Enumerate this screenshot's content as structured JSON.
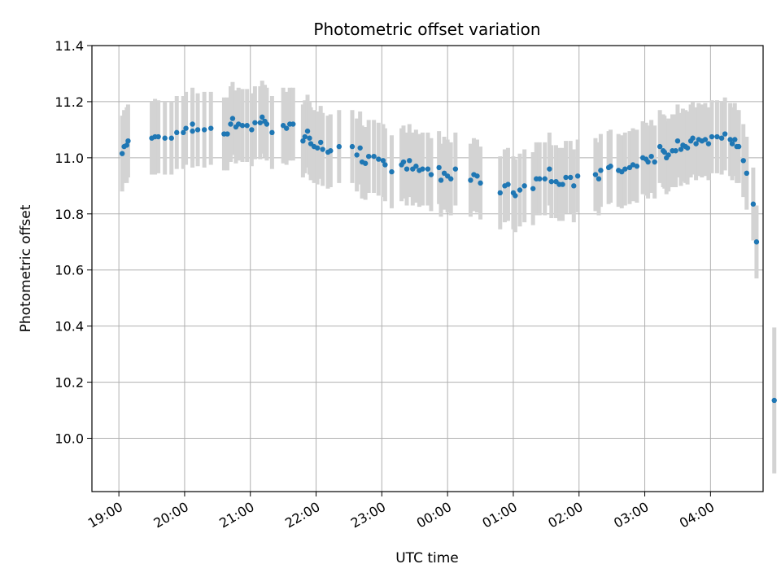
{
  "chart_data": {
    "type": "scatter",
    "title": "Photometric offset variation",
    "xlabel": "UTC time",
    "ylabel": "Photometric offset",
    "grid": true,
    "x_unit": "hours since 19:00 UTC",
    "xlim": [
      -0.41,
      9.8
    ],
    "ylim": [
      9.81,
      11.4
    ],
    "x_ticks": [
      0,
      1,
      2,
      3,
      4,
      5,
      6,
      7,
      8,
      9
    ],
    "x_tick_labels": [
      "19:00",
      "20:00",
      "21:00",
      "22:00",
      "23:00",
      "00:00",
      "01:00",
      "02:00",
      "03:00",
      "04:00"
    ],
    "y_ticks": [
      10.0,
      10.2,
      10.4,
      10.6,
      10.8,
      11.0,
      11.2,
      11.4
    ],
    "y_tick_labels": [
      "10.0",
      "10.2",
      "10.4",
      "10.6",
      "10.8",
      "11.0",
      "11.2",
      "11.4"
    ],
    "series": [
      {
        "name": "Photometric offset",
        "marker_color": "#1f77b4",
        "errorbar_color": "#d3d3d3",
        "points": [
          [
            0.05,
            11.015,
            0.135
          ],
          [
            0.08,
            11.04,
            0.13
          ],
          [
            0.12,
            11.045,
            0.135
          ],
          [
            0.14,
            11.06,
            0.13
          ],
          [
            0.5,
            11.07,
            0.13
          ],
          [
            0.55,
            11.075,
            0.135
          ],
          [
            0.6,
            11.075,
            0.13
          ],
          [
            0.7,
            11.07,
            0.13
          ],
          [
            0.8,
            11.07,
            0.13
          ],
          [
            0.88,
            11.09,
            0.13
          ],
          [
            0.98,
            11.09,
            0.13
          ],
          [
            1.02,
            11.105,
            0.13
          ],
          [
            1.12,
            11.095,
            0.13
          ],
          [
            1.12,
            11.12,
            0.13
          ],
          [
            1.2,
            11.1,
            0.13
          ],
          [
            1.3,
            11.1,
            0.135
          ],
          [
            1.4,
            11.105,
            0.13
          ],
          [
            1.6,
            11.085,
            0.13
          ],
          [
            1.65,
            11.085,
            0.13
          ],
          [
            1.7,
            11.12,
            0.135
          ],
          [
            1.73,
            11.14,
            0.13
          ],
          [
            1.78,
            11.11,
            0.13
          ],
          [
            1.82,
            11.12,
            0.13
          ],
          [
            1.88,
            11.115,
            0.13
          ],
          [
            1.95,
            11.115,
            0.13
          ],
          [
            2.02,
            11.1,
            0.13
          ],
          [
            2.07,
            11.125,
            0.13
          ],
          [
            2.15,
            11.125,
            0.13
          ],
          [
            2.18,
            11.145,
            0.13
          ],
          [
            2.22,
            11.13,
            0.13
          ],
          [
            2.25,
            11.12,
            0.13
          ],
          [
            2.33,
            11.09,
            0.13
          ],
          [
            2.5,
            11.115,
            0.135
          ],
          [
            2.55,
            11.105,
            0.13
          ],
          [
            2.6,
            11.12,
            0.13
          ],
          [
            2.65,
            11.12,
            0.13
          ],
          [
            2.8,
            11.06,
            0.13
          ],
          [
            2.83,
            11.075,
            0.13
          ],
          [
            2.87,
            11.095,
            0.13
          ],
          [
            2.9,
            11.07,
            0.13
          ],
          [
            2.92,
            11.05,
            0.13
          ],
          [
            2.97,
            11.04,
            0.13
          ],
          [
            3.02,
            11.035,
            0.13
          ],
          [
            3.07,
            11.055,
            0.13
          ],
          [
            3.1,
            11.03,
            0.13
          ],
          [
            3.18,
            11.02,
            0.13
          ],
          [
            3.22,
            11.025,
            0.13
          ],
          [
            3.35,
            11.04,
            0.13
          ],
          [
            3.55,
            11.04,
            0.13
          ],
          [
            3.62,
            11.01,
            0.13
          ],
          [
            3.67,
            11.035,
            0.13
          ],
          [
            3.7,
            10.985,
            0.13
          ],
          [
            3.75,
            10.98,
            0.13
          ],
          [
            3.8,
            11.005,
            0.13
          ],
          [
            3.88,
            11.005,
            0.13
          ],
          [
            3.95,
            10.995,
            0.13
          ],
          [
            4.02,
            10.99,
            0.13
          ],
          [
            4.05,
            10.975,
            0.13
          ],
          [
            4.15,
            10.95,
            0.13
          ],
          [
            4.3,
            10.975,
            0.13
          ],
          [
            4.33,
            10.985,
            0.13
          ],
          [
            4.38,
            10.96,
            0.13
          ],
          [
            4.42,
            10.99,
            0.13
          ],
          [
            4.47,
            10.96,
            0.13
          ],
          [
            4.52,
            10.97,
            0.13
          ],
          [
            4.57,
            10.955,
            0.13
          ],
          [
            4.62,
            10.96,
            0.13
          ],
          [
            4.7,
            10.96,
            0.13
          ],
          [
            4.75,
            10.94,
            0.13
          ],
          [
            4.87,
            10.965,
            0.13
          ],
          [
            4.9,
            10.92,
            0.13
          ],
          [
            4.95,
            10.945,
            0.13
          ],
          [
            5.0,
            10.935,
            0.13
          ],
          [
            5.05,
            10.925,
            0.13
          ],
          [
            5.12,
            10.96,
            0.13
          ],
          [
            5.35,
            10.92,
            0.13
          ],
          [
            5.4,
            10.94,
            0.13
          ],
          [
            5.45,
            10.935,
            0.13
          ],
          [
            5.5,
            10.91,
            0.13
          ],
          [
            5.8,
            10.875,
            0.13
          ],
          [
            5.87,
            10.9,
            0.13
          ],
          [
            5.92,
            10.905,
            0.13
          ],
          [
            6.0,
            10.875,
            0.13
          ],
          [
            6.03,
            10.865,
            0.13
          ],
          [
            6.1,
            10.885,
            0.13
          ],
          [
            6.17,
            10.9,
            0.13
          ],
          [
            6.3,
            10.89,
            0.13
          ],
          [
            6.35,
            10.925,
            0.13
          ],
          [
            6.4,
            10.925,
            0.13
          ],
          [
            6.48,
            10.925,
            0.13
          ],
          [
            6.55,
            10.96,
            0.13
          ],
          [
            6.58,
            10.915,
            0.13
          ],
          [
            6.65,
            10.915,
            0.13
          ],
          [
            6.7,
            10.905,
            0.13
          ],
          [
            6.75,
            10.905,
            0.13
          ],
          [
            6.8,
            10.93,
            0.13
          ],
          [
            6.87,
            10.93,
            0.13
          ],
          [
            6.92,
            10.9,
            0.13
          ],
          [
            6.98,
            10.935,
            0.13
          ],
          [
            7.25,
            10.94,
            0.13
          ],
          [
            7.3,
            10.925,
            0.13
          ],
          [
            7.33,
            10.955,
            0.13
          ],
          [
            7.45,
            10.965,
            0.13
          ],
          [
            7.48,
            10.97,
            0.13
          ],
          [
            7.6,
            10.955,
            0.13
          ],
          [
            7.65,
            10.95,
            0.13
          ],
          [
            7.7,
            10.96,
            0.13
          ],
          [
            7.77,
            10.965,
            0.13
          ],
          [
            7.82,
            10.975,
            0.13
          ],
          [
            7.88,
            10.97,
            0.13
          ],
          [
            7.97,
            11.0,
            0.13
          ],
          [
            8.02,
            10.995,
            0.13
          ],
          [
            8.05,
            10.985,
            0.13
          ],
          [
            8.1,
            11.005,
            0.13
          ],
          [
            8.15,
            10.985,
            0.13
          ],
          [
            8.23,
            11.04,
            0.13
          ],
          [
            8.28,
            11.025,
            0.13
          ],
          [
            8.3,
            11.02,
            0.13
          ],
          [
            8.33,
            11.0,
            0.13
          ],
          [
            8.36,
            11.01,
            0.13
          ],
          [
            8.42,
            11.025,
            0.13
          ],
          [
            8.47,
            11.025,
            0.13
          ],
          [
            8.5,
            11.06,
            0.13
          ],
          [
            8.55,
            11.03,
            0.13
          ],
          [
            8.58,
            11.045,
            0.13
          ],
          [
            8.62,
            11.04,
            0.13
          ],
          [
            8.65,
            11.035,
            0.13
          ],
          [
            8.7,
            11.06,
            0.13
          ],
          [
            8.73,
            11.07,
            0.13
          ],
          [
            8.78,
            11.05,
            0.13
          ],
          [
            8.82,
            11.065,
            0.13
          ],
          [
            8.87,
            11.06,
            0.13
          ],
          [
            8.92,
            11.065,
            0.13
          ],
          [
            8.97,
            11.05,
            0.13
          ],
          [
            9.02,
            11.075,
            0.13
          ],
          [
            9.1,
            11.075,
            0.13
          ],
          [
            9.17,
            11.07,
            0.13
          ],
          [
            9.22,
            11.085,
            0.13
          ],
          [
            9.3,
            11.065,
            0.13
          ],
          [
            9.33,
            11.05,
            0.13
          ],
          [
            9.37,
            11.065,
            0.13
          ],
          [
            9.4,
            11.04,
            0.13
          ],
          [
            9.43,
            11.04,
            0.13
          ],
          [
            9.5,
            10.99,
            0.13
          ],
          [
            9.55,
            10.945,
            0.13
          ],
          [
            9.65,
            10.835,
            0.13
          ],
          [
            9.7,
            10.7,
            0.13
          ],
          [
            9.97,
            10.135,
            0.26
          ]
        ]
      }
    ]
  }
}
